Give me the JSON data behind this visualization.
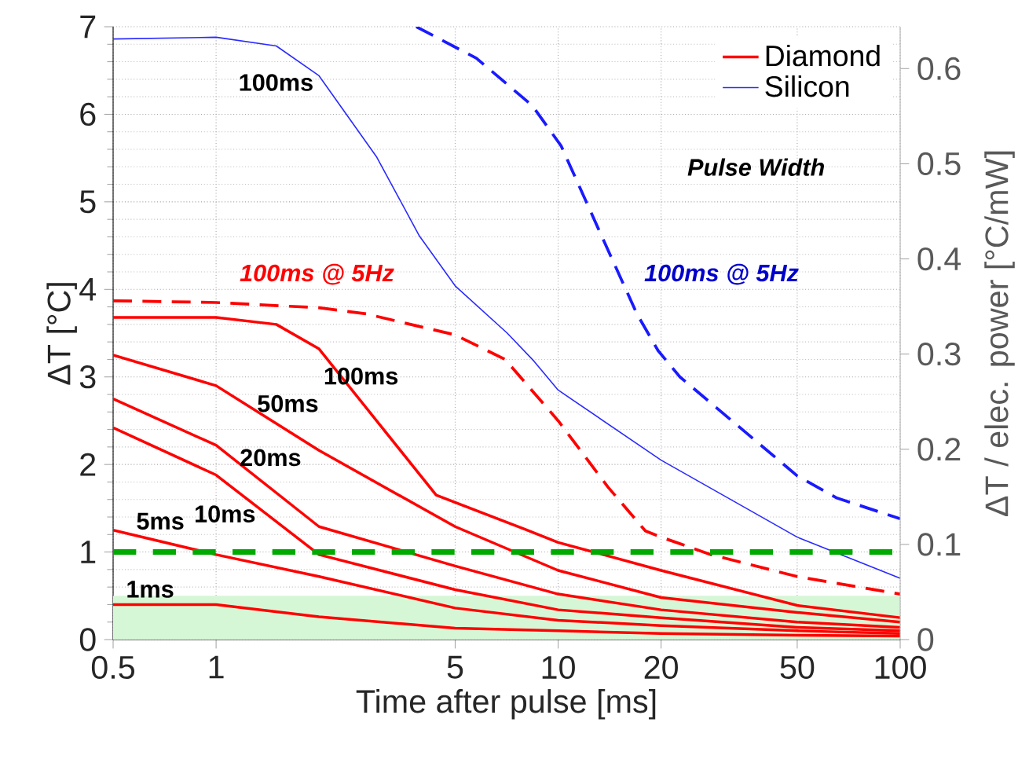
{
  "chart_data": {
    "type": "line",
    "xlabel": "Time after pulse [ms]",
    "ylabel": "ΔT [°C]",
    "y2label": "ΔT / elec. power [°C/mW]",
    "log": "x",
    "grid": true,
    "legend": "top right",
    "xlim": [
      0.5,
      100
    ],
    "xticks": [
      0.5,
      1,
      5,
      10,
      20,
      50,
      100
    ],
    "ylim": [
      0,
      7
    ],
    "yticks": [
      0,
      1,
      2,
      3,
      4,
      5,
      6,
      7
    ],
    "y2lim": [
      0,
      0.644
    ],
    "y2ticks": [
      0,
      0.1,
      0.2,
      0.3,
      0.4,
      0.5,
      0.6
    ],
    "series": [
      {
        "name": "Diamond",
        "color": "#ff0000",
        "x": [
          0.5,
          1,
          1.5,
          2,
          4.4,
          8,
          10,
          20,
          50,
          100
        ],
        "values": [
          3.68,
          3.68,
          3.6,
          3.32,
          1.65,
          1.26,
          1.11,
          0.79,
          0.39,
          0.25
        ]
      },
      {
        "color": "#ff0000",
        "x": [
          0.5,
          1,
          2,
          5,
          10,
          20,
          50,
          100
        ],
        "values": [
          3.25,
          2.9,
          2.16,
          1.29,
          0.79,
          0.48,
          0.31,
          0.2
        ]
      },
      {
        "color": "#ff0000",
        "x": [
          0.5,
          1,
          2,
          5,
          10,
          20,
          50,
          100
        ],
        "values": [
          2.75,
          2.22,
          1.29,
          0.84,
          0.52,
          0.34,
          0.2,
          0.14
        ]
      },
      {
        "color": "#ff0000",
        "x": [
          0.5,
          1,
          2,
          5,
          10,
          20,
          50,
          100
        ],
        "values": [
          2.42,
          1.88,
          0.97,
          0.57,
          0.34,
          0.25,
          0.14,
          0.1
        ]
      },
      {
        "color": "#ff0000",
        "x": [
          0.5,
          1,
          2,
          5,
          10,
          20,
          50,
          100
        ],
        "values": [
          1.25,
          0.97,
          0.72,
          0.36,
          0.22,
          0.16,
          0.1,
          0.07
        ]
      },
      {
        "color": "#ff0000",
        "x": [
          0.5,
          1,
          2,
          5,
          10,
          20,
          50,
          100
        ],
        "values": [
          0.4,
          0.4,
          0.26,
          0.13,
          0.1,
          0.07,
          0.05,
          0.04
        ]
      },
      {
        "color": "#ff0000",
        "line_style": "dashed",
        "x": [
          0.5,
          1,
          2,
          2.75,
          5,
          7,
          10,
          14,
          18,
          20,
          28,
          50,
          100
        ],
        "values": [
          3.87,
          3.85,
          3.79,
          3.72,
          3.48,
          3.2,
          2.5,
          1.74,
          1.24,
          1.17,
          0.97,
          0.72,
          0.52
        ]
      },
      {
        "name": "Silicon",
        "color": "#2a2aff",
        "x": [
          0.5,
          1,
          1.5,
          2,
          2.95,
          3.93,
          5,
          7.1,
          8.5,
          10,
          20,
          50,
          100
        ],
        "values": [
          6.86,
          6.88,
          6.78,
          6.44,
          5.51,
          4.61,
          4.04,
          3.5,
          3.18,
          2.85,
          2.05,
          1.17,
          0.7
        ]
      },
      {
        "color": "#1a1aff",
        "line_style": "dashed",
        "x": [
          3.85,
          5.77,
          8.4,
          10.2,
          13.4,
          17,
          19.6,
          22.7,
          28,
          50,
          65,
          100
        ],
        "values": [
          7.0,
          6.64,
          6.1,
          5.64,
          4.61,
          3.72,
          3.3,
          3.0,
          2.7,
          1.87,
          1.62,
          1.38
        ]
      }
    ],
    "ref_lines": [
      {
        "axis": "y",
        "value": 1,
        "color": "#00aa00",
        "line_style": "dashed"
      }
    ],
    "bands": [
      {
        "axis": "y",
        "from": 0,
        "to": 0.5,
        "color": "#d6f7d6"
      }
    ],
    "annotations": [
      "100ms",
      "100ms",
      "50ms",
      "20ms",
      "10ms",
      "5ms",
      "1ms",
      "100ms @ 5Hz",
      "100ms @ 5Hz",
      "Pulse Width"
    ]
  }
}
